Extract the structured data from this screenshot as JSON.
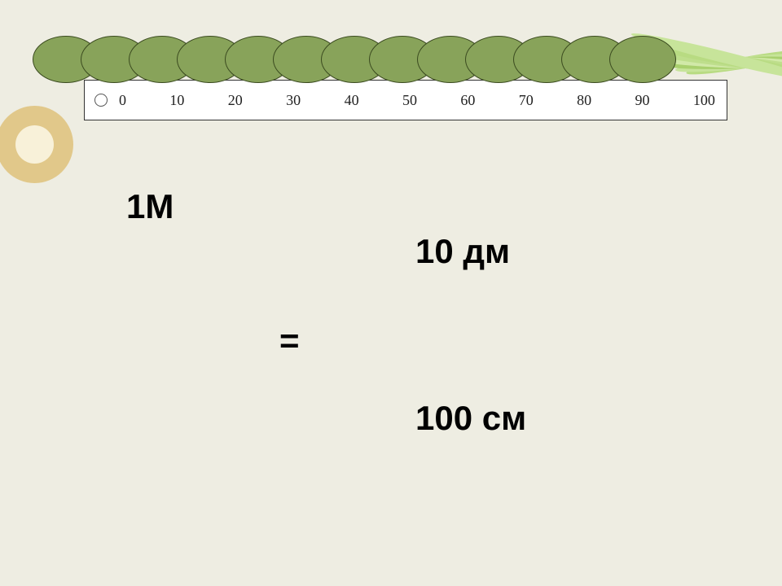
{
  "background_color": "#eeede2",
  "ring": {
    "outer_color": "#e1c88a",
    "inner_color": "#f8f1d9"
  },
  "ruler": {
    "bg": "#ffffff",
    "border": "#333333",
    "hole_border": "#555555",
    "tick_font": "Times New Roman",
    "tick_fontsize": 18,
    "ticks": [
      "0",
      "10",
      "20",
      "30",
      "40",
      "50",
      "60",
      "70",
      "80",
      "90",
      "100"
    ]
  },
  "beads": {
    "fill": "#88a35a",
    "border": "#3a4a1f",
    "count": 13,
    "start_left": 0,
    "step": 59,
    "width": 80,
    "height": 56
  },
  "streaks": {
    "colors": [
      "#b8db82",
      "#c7e49a",
      "#a9d06e",
      "#d1e9a8",
      "#bede8c"
    ],
    "count": 7
  },
  "labels": {
    "m1": "1М",
    "dm10": "10 дм",
    "eq": "=",
    "cm100": "100 см",
    "fontsize": 42,
    "color": "#000000"
  }
}
